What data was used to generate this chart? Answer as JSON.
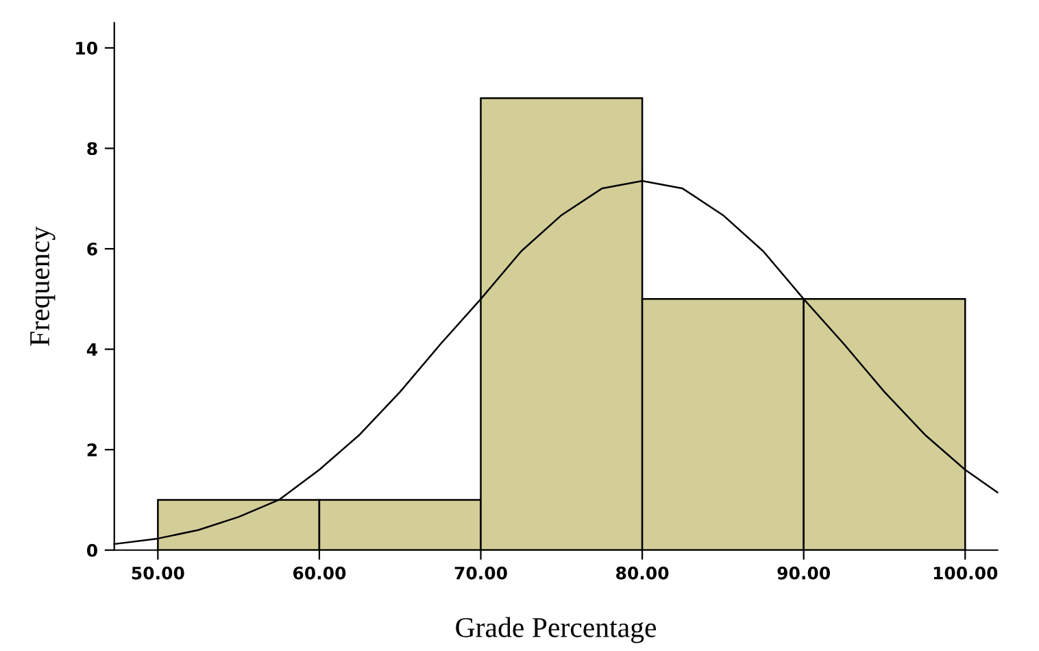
{
  "chart_data": {
    "type": "histogram",
    "xlabel": "Grade Percentage",
    "ylabel": "Frequency",
    "xlim": [
      47.3,
      102
    ],
    "xticks": [
      {
        "value": 50,
        "label": "50.00"
      },
      {
        "value": 60,
        "label": "60.00"
      },
      {
        "value": 70,
        "label": "70.00"
      },
      {
        "value": 80,
        "label": "80.00"
      },
      {
        "value": 90,
        "label": "90.00"
      },
      {
        "value": 100,
        "label": "100.00"
      }
    ],
    "ylim": [
      0,
      10.5
    ],
    "yticks": [
      0,
      2,
      4,
      6,
      8,
      10
    ],
    "grid": false,
    "legend": false,
    "series": [
      {
        "color": "#d3ce98",
        "bins": [
          50,
          60,
          70,
          80,
          90,
          100
        ],
        "values": [
          1,
          1,
          9,
          5,
          5
        ]
      },
      {
        "type": "line",
        "color": "#000000",
        "marker": "none",
        "line_style": "solid",
        "x": [
          47.3,
          50,
          52.5,
          55,
          57.5,
          60,
          62.5,
          65,
          67.5,
          70,
          72.5,
          75,
          77.5,
          80,
          82.5,
          85,
          87.5,
          90,
          92.5,
          95,
          97.5,
          100,
          102
        ],
        "values": [
          0.12,
          0.23,
          0.4,
          0.66,
          1.0,
          1.6,
          2.3,
          3.15,
          4.1,
          5.0,
          5.95,
          6.67,
          7.2,
          7.35,
          7.2,
          6.67,
          5.95,
          5.0,
          4.1,
          3.15,
          2.3,
          1.6,
          1.15
        ]
      }
    ]
  }
}
